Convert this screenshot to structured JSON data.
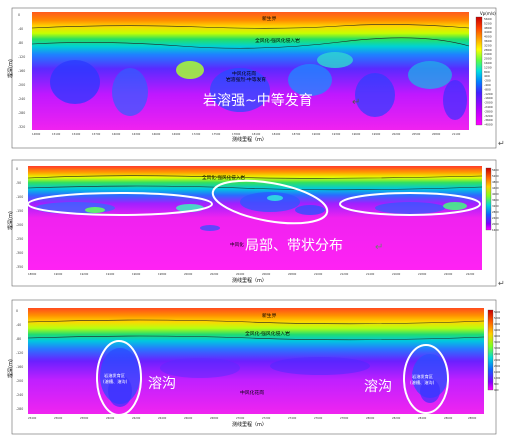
{
  "panels": [
    {
      "top_label": "新生界",
      "weathered_label": "全风化-强风化侵入岩",
      "mid_labels": [
        "中风化花岗",
        "岩溶强烈-中等发育"
      ],
      "callouts": [
        "岩溶强~中等发育"
      ],
      "y_axis_label": "埋深(m)",
      "x_axis_label": "测线里程（m）",
      "legend_title": "Vp(m/s)",
      "legend_ticks": [
        "5600",
        "5200",
        "4800",
        "4400",
        "4000",
        "3600",
        "3200",
        "2800",
        "2400",
        "2000",
        "1600",
        "1200",
        "800",
        "400",
        "-200",
        "-400",
        "-800",
        "-1200",
        "-1600",
        "-2000",
        "-2400",
        "-2800",
        "-3200",
        "-3600",
        "-4000"
      ],
      "y_ticks": [
        "0",
        "-40",
        "-80",
        "-120",
        "-160",
        "-200",
        "-240",
        "-280",
        "-320"
      ],
      "x_ticks": [
        "14800",
        "15100",
        "15400",
        "15700",
        "16000",
        "16300",
        "16600",
        "16900",
        "17200",
        "17500",
        "17800",
        "18100",
        "18400",
        "18700",
        "19000",
        "19300",
        "19600",
        "19900",
        "20200",
        "20500",
        "20800",
        "21100"
      ]
    },
    {
      "top_label": "",
      "weathered_label": "全风化-强风化侵入岩",
      "mid_labels": [
        "中风化"
      ],
      "callouts": [
        "局部、带状分布"
      ],
      "y_axis_label": "埋深(m)",
      "x_axis_label": "测线里程（m）",
      "legend_title": "",
      "legend_ticks": [
        "5600",
        "5200",
        "4800",
        "4400",
        "4000",
        "3600",
        "3200",
        "2800",
        "2400",
        "2000",
        "1600"
      ],
      "y_ticks": [
        "0",
        "-50",
        "-100",
        "-150",
        "-200",
        "-250",
        "-300",
        "-350"
      ],
      "x_ticks": [
        "18800",
        "19000",
        "19200",
        "19400",
        "19600",
        "19800",
        "20000",
        "20200",
        "20400",
        "20600",
        "20800",
        "21000",
        "21200",
        "21400",
        "21600",
        "21800",
        "22000",
        "22200"
      ]
    },
    {
      "top_label": "新生界",
      "weathered_label": "全风化-强风化侵入岩",
      "mid_labels": [
        "中风化花岗"
      ],
      "callouts": [
        "溶沟",
        "溶沟"
      ],
      "ellipse_texts": [
        "岩溶发育区\n(溶槽、溶沟)",
        "岩溶发育区\n(溶槽、溶沟)"
      ],
      "y_axis_label": "埋深(m)",
      "x_axis_label": "测线里程（m）",
      "legend_title": "",
      "legend_ticks": [
        "5600",
        "5200",
        "4800",
        "4400",
        "4000",
        "3600",
        "3200",
        "2800",
        "2400",
        "2000",
        "1600",
        "1200",
        "800",
        "400"
      ],
      "y_ticks": [
        "0",
        "-40",
        "-80",
        "-120",
        "-160",
        "-200",
        "-240",
        "-280"
      ],
      "x_ticks": [
        "25400",
        "25600",
        "25800",
        "26000",
        "26200",
        "26400",
        "26600",
        "26800",
        "27000",
        "27200",
        "27400",
        "27600",
        "27800",
        "28000",
        "28200",
        "28400",
        "28600",
        "28800"
      ]
    }
  ],
  "return_mark": "↵"
}
